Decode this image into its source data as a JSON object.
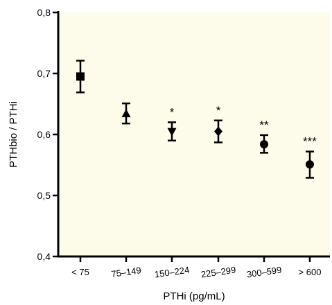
{
  "chart_data": {
    "type": "scatter",
    "xlabel": "PTHi (pg/mL)",
    "ylabel": "PTHbio / PTHi",
    "ylim": [
      0.4,
      0.8
    ],
    "yticks": [
      "0,4",
      "0,5",
      "0,6",
      "0,7",
      "0,8"
    ],
    "yticks_values": [
      0.4,
      0.5,
      0.6,
      0.7,
      0.8
    ],
    "categories": [
      "< 75",
      "75–149",
      "150–224",
      "225–299",
      "300–599",
      "> 600"
    ],
    "values": [
      0.695,
      0.634,
      0.605,
      0.605,
      0.584,
      0.551
    ],
    "error_low": [
      0.669,
      0.618,
      0.59,
      0.587,
      0.57,
      0.529
    ],
    "error_high": [
      0.721,
      0.651,
      0.62,
      0.623,
      0.599,
      0.572
    ],
    "markers": [
      "square",
      "triangle-up",
      "triangle-down",
      "diamond",
      "circle",
      "circle"
    ],
    "significance": [
      "",
      "",
      "*",
      "*",
      "**",
      "***"
    ],
    "plot_background": "#fdfcea",
    "marker_color": "#000000",
    "grid": false
  }
}
